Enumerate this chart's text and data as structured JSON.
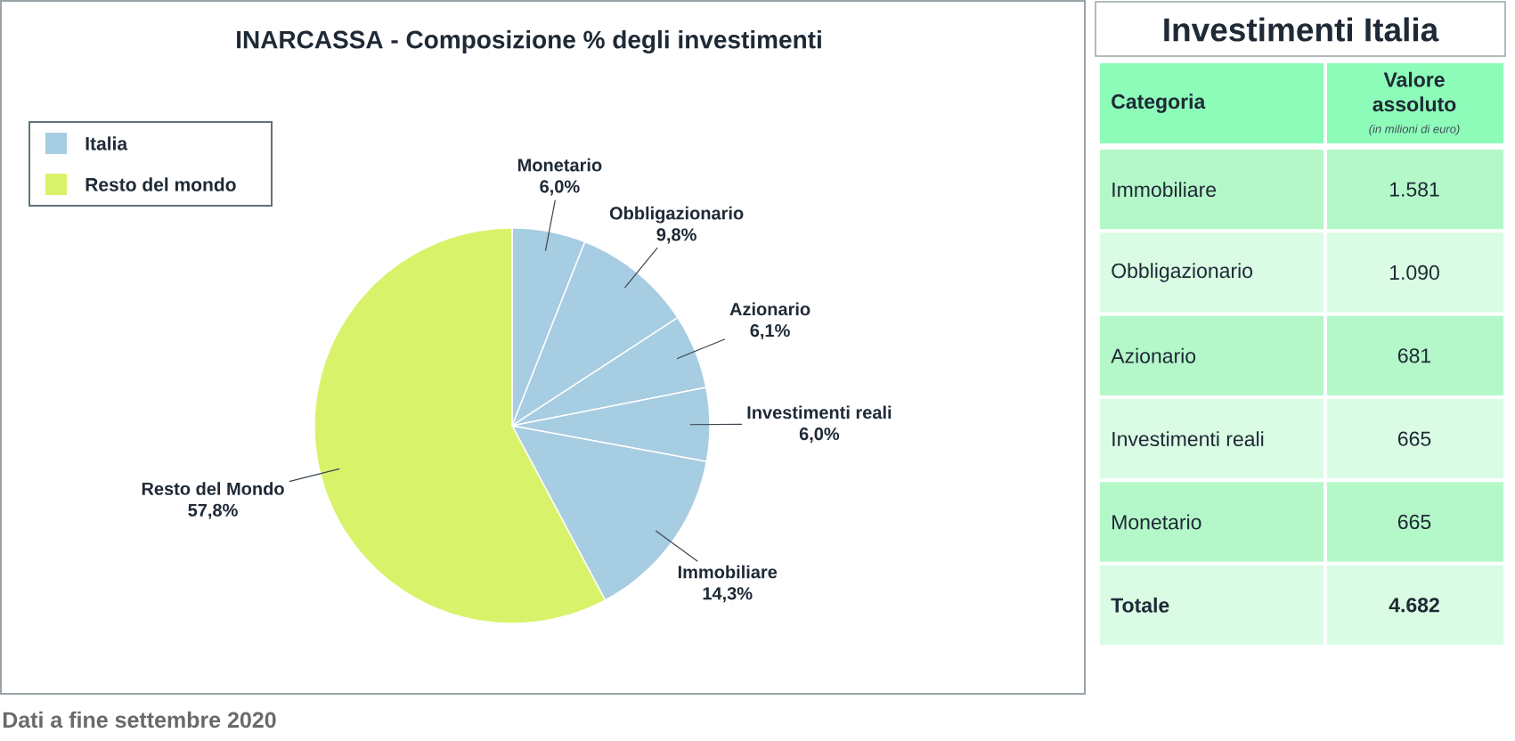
{
  "chart_data": [
    {
      "type": "pie",
      "title": "INARCASSA - Composizione % degli investimenti",
      "categories": [
        "Monetario",
        "Obbligazionario",
        "Azionario",
        "Investimenti reali",
        "Immobiliare",
        "Resto del Mondo"
      ],
      "values": [
        6.0,
        9.8,
        6.1,
        6.0,
        14.3,
        57.8
      ],
      "colors": [
        "#a7cde2",
        "#a7cde2",
        "#a7cde2",
        "#a7cde2",
        "#a7cde2",
        "#d8f36a"
      ],
      "value_labels": [
        "6,0%",
        "9,8%",
        "6,1%",
        "6,0%",
        "14,3%",
        "57,8%"
      ],
      "annotations": [
        "Italia",
        "Resto del mondo",
        "Dati a fine settembre 2020"
      ]
    },
    {
      "type": "other",
      "title": "Investimenti Italia",
      "xlabel": "Categoria",
      "ylabel": "Valore assoluto",
      "annotations": [
        "(in milioni di euro)"
      ],
      "categories": [
        "Immobiliare",
        "Obbligazionario",
        "Azionario",
        "Investimenti reali",
        "Monetario",
        "Totale"
      ],
      "values": [
        1581,
        1090,
        681,
        665,
        665,
        4682
      ],
      "value_labels": [
        "1.581",
        "1.090",
        "681",
        "665",
        "665",
        "4.682"
      ]
    }
  ]
}
